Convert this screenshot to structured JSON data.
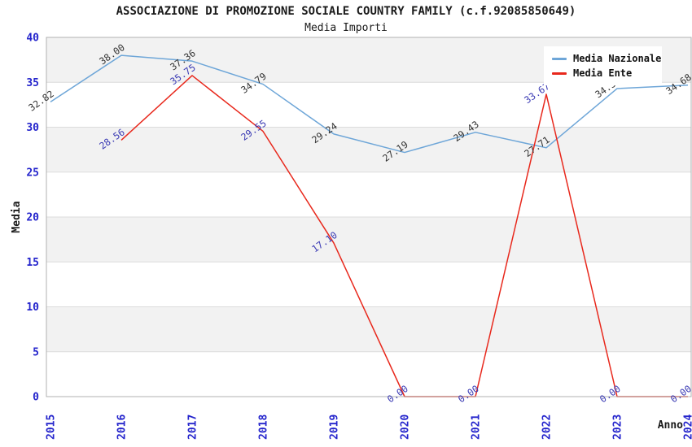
{
  "title": "ASSOCIAZIONE DI PROMOZIONE SOCIALE COUNTRY FAMILY (c.f.92085850649)",
  "subtitle": "Media Importi",
  "legend": {
    "items": [
      {
        "label": "Media Nazionale",
        "color": "#6ea6d8"
      },
      {
        "label": "Media Ente",
        "color": "#e8281c"
      }
    ]
  },
  "chart_data": {
    "type": "line",
    "title": "ASSOCIAZIONE DI PROMOZIONE SOCIALE COUNTRY FAMILY (c.f.92085850649)",
    "subtitle": "Media Importi",
    "xlabel": "Anno",
    "ylabel": "Media",
    "x": [
      2015,
      2016,
      2017,
      2018,
      2019,
      2020,
      2021,
      2022,
      2023,
      2024
    ],
    "yticks": [
      0,
      5,
      10,
      15,
      20,
      25,
      30,
      35,
      40
    ],
    "ylim": [
      0,
      40
    ],
    "grid": true,
    "band_fill": "alternating horizontal bands every 5 units",
    "legend_position": "top-right",
    "series": [
      {
        "name": "Media Nazionale",
        "color": "#6ea6d8",
        "label_color": "#333333",
        "values": [
          32.82,
          38.0,
          37.36,
          34.79,
          29.24,
          27.19,
          29.43,
          27.71,
          34.3,
          34.68
        ]
      },
      {
        "name": "Media Ente",
        "color": "#e8281c",
        "label_color": "#3a3ab4",
        "values": [
          null,
          28.56,
          35.75,
          29.55,
          17.1,
          0.0,
          0.0,
          33.67,
          0.0,
          0.0
        ]
      }
    ],
    "colors": {
      "tick_label": "#2424cc",
      "axis_label": "#1a1a1a",
      "band": "#f2f2f2",
      "gridline": "#dcdcdc",
      "spine": "#b0b0b0",
      "background": "#ffffff"
    }
  }
}
